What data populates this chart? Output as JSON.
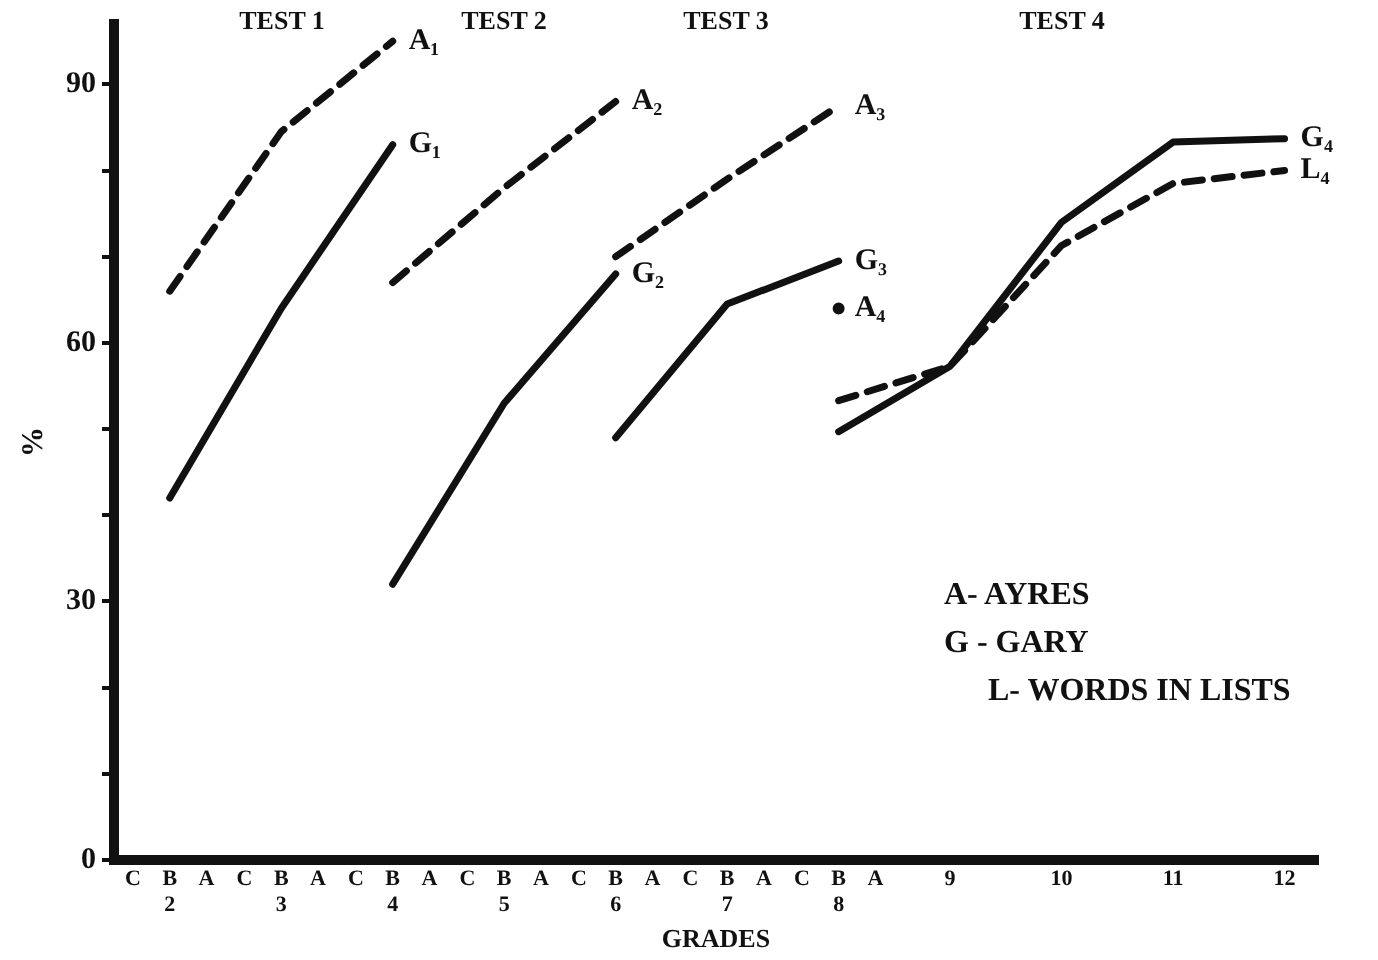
{
  "chart_data": {
    "type": "line",
    "xlabel": "GRADES",
    "ylabel": "%",
    "xlim": [
      1.5,
      12.3
    ],
    "ylim": [
      0,
      97
    ],
    "xticks": [
      {
        "value": 1.67,
        "label": "C"
      },
      {
        "value": 2,
        "label": "B\n2"
      },
      {
        "value": 2.33,
        "label": "A"
      },
      {
        "value": 2.67,
        "label": "C"
      },
      {
        "value": 3,
        "label": "B\n3"
      },
      {
        "value": 3.33,
        "label": "A"
      },
      {
        "value": 3.67,
        "label": "C"
      },
      {
        "value": 4,
        "label": "B\n4"
      },
      {
        "value": 4.33,
        "label": "A"
      },
      {
        "value": 4.67,
        "label": "C"
      },
      {
        "value": 5,
        "label": "B\n5"
      },
      {
        "value": 5.33,
        "label": "A"
      },
      {
        "value": 5.67,
        "label": "C"
      },
      {
        "value": 6,
        "label": "B\n6"
      },
      {
        "value": 6.33,
        "label": "A"
      },
      {
        "value": 6.67,
        "label": "C"
      },
      {
        "value": 7,
        "label": "B\n7"
      },
      {
        "value": 7.33,
        "label": "A"
      },
      {
        "value": 7.67,
        "label": "C"
      },
      {
        "value": 8,
        "label": "B\n8"
      },
      {
        "value": 8.33,
        "label": "A"
      },
      9,
      10,
      11,
      12
    ],
    "yticks": [
      0,
      {
        "value": 10,
        "label": null
      },
      {
        "value": 20,
        "label": null
      },
      30,
      {
        "value": 40,
        "label": null
      },
      {
        "value": 50,
        "label": null
      },
      60,
      {
        "value": 70,
        "label": null
      },
      {
        "value": 80,
        "label": null
      },
      90
    ],
    "grid": false,
    "legend": false,
    "series": [
      {
        "name": "A₁",
        "color": "#111111",
        "line_style": "dashed",
        "x": [
          2,
          3,
          4
        ],
        "values": [
          66,
          84.5,
          95
        ]
      },
      {
        "name": "G₁",
        "color": "#111111",
        "line_style": "solid",
        "x": [
          2,
          3,
          4
        ],
        "values": [
          42,
          64,
          83
        ]
      },
      {
        "name": "A₂",
        "color": "#111111",
        "line_style": "dashed",
        "x": [
          4,
          5,
          6
        ],
        "values": [
          67,
          78,
          88
        ]
      },
      {
        "name": "G₂",
        "color": "#111111",
        "line_style": "solid",
        "x": [
          4,
          5,
          6
        ],
        "values": [
          32,
          53,
          68
        ]
      },
      {
        "name": "A₃",
        "color": "#111111",
        "line_style": "dashed",
        "x": [
          6,
          7,
          8
        ],
        "values": [
          70,
          79,
          87.5
        ]
      },
      {
        "name": "G₃",
        "color": "#111111",
        "line_style": "solid",
        "x": [
          6,
          7,
          8
        ],
        "values": [
          49,
          64.5,
          69.5
        ]
      },
      {
        "name": "A₄",
        "color": "#111111",
        "type": "scatter",
        "marker": "circle",
        "x": [
          8
        ],
        "values": [
          64
        ]
      },
      {
        "name": "G₄",
        "color": "#111111",
        "line_style": "solid",
        "x": [
          8,
          9,
          10,
          11,
          12
        ],
        "values": [
          49.7,
          57.3,
          74,
          83.3,
          83.7
        ]
      },
      {
        "name": "L₄",
        "color": "#111111",
        "line_style": "dashed",
        "x": [
          8,
          9,
          10,
          11,
          12
        ],
        "values": [
          53.3,
          57.3,
          71.3,
          78.5,
          80
        ]
      }
    ],
    "annotations": [
      "TEST 1",
      "TEST 2",
      "TEST 3",
      "TEST 4",
      "A- AYRES",
      "G - GARY",
      "L- WORDS IN LISTS"
    ]
  }
}
